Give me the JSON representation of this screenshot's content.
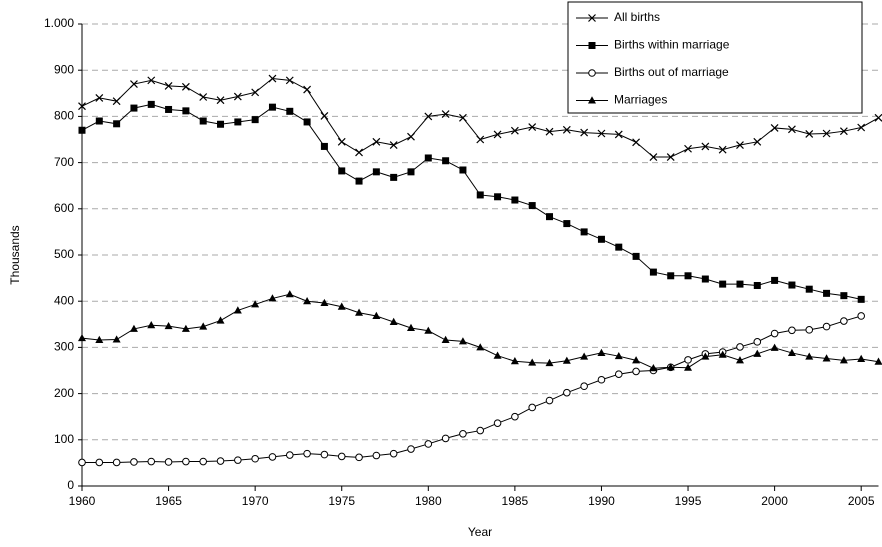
{
  "chart_data": {
    "type": "line",
    "x_label": "Year",
    "y_label": "Thousands",
    "x": [
      1960,
      1961,
      1962,
      1963,
      1964,
      1965,
      1966,
      1967,
      1968,
      1969,
      1970,
      1971,
      1972,
      1973,
      1974,
      1975,
      1976,
      1977,
      1978,
      1979,
      1980,
      1981,
      1982,
      1983,
      1984,
      1985,
      1986,
      1987,
      1988,
      1989,
      1990,
      1991,
      1992,
      1993,
      1994,
      1995,
      1996,
      1997,
      1998,
      1999,
      2000,
      2001,
      2002,
      2003,
      2004,
      2005,
      2006
    ],
    "series": [
      {
        "name": "All births",
        "color": "#000000",
        "marker": "x",
        "values": [
          822,
          840,
          833,
          870,
          878,
          866,
          864,
          842,
          835,
          843,
          852,
          882,
          878,
          858,
          801,
          745,
          722,
          745,
          738,
          756,
          800,
          805,
          797,
          750,
          761,
          769,
          777,
          767,
          771,
          765,
          763,
          761,
          744,
          712,
          712,
          730,
          735,
          728,
          738,
          745,
          775,
          772,
          762,
          763,
          768,
          776,
          797
        ]
      },
      {
        "name": "Births within marriage",
        "color": "#000000",
        "marker": "square",
        "values": [
          770,
          790,
          784,
          818,
          826,
          815,
          812,
          790,
          783,
          788,
          793,
          820,
          811,
          788,
          735,
          682,
          660,
          680,
          668,
          680,
          710,
          704,
          684,
          630,
          626,
          619,
          607,
          583,
          568,
          550,
          534,
          517,
          497,
          463,
          455,
          455,
          448,
          437,
          437,
          434,
          445,
          435,
          426,
          417,
          412,
          404,
          null
        ]
      },
      {
        "name": "Births out of marriage",
        "color": "#000000",
        "marker": "circle",
        "values": [
          51,
          51,
          51,
          52,
          53,
          52,
          53,
          53,
          54,
          56,
          59,
          63,
          67,
          70,
          68,
          64,
          62,
          66,
          70,
          80,
          91,
          103,
          113,
          120,
          136,
          150,
          170,
          185,
          202,
          216,
          230,
          242,
          248,
          250,
          257,
          273,
          286,
          290,
          301,
          312,
          330,
          337,
          338,
          345,
          357,
          368,
          null
        ]
      },
      {
        "name": "Marriages",
        "color": "#000000",
        "marker": "triangle",
        "values": [
          320,
          316,
          317,
          340,
          348,
          346,
          340,
          345,
          358,
          380,
          393,
          406,
          415,
          400,
          396,
          388,
          375,
          368,
          355,
          342,
          336,
          316,
          313,
          300,
          282,
          270,
          267,
          266,
          271,
          280,
          288,
          281,
          272,
          255,
          257,
          256,
          280,
          284,
          272,
          286,
          299,
          288,
          280,
          276,
          272,
          275,
          269
        ]
      }
    ],
    "xlim": [
      1960,
      2006
    ],
    "xticks": [
      1960,
      1965,
      1970,
      1975,
      1980,
      1985,
      1990,
      1995,
      2000,
      2005
    ],
    "ylim": [
      0,
      1000
    ],
    "yticks": [
      0,
      100,
      200,
      300,
      400,
      500,
      600,
      700,
      800,
      900,
      {
        "value": 1000,
        "label": "1.000"
      }
    ],
    "grid": true,
    "legend": "top-right"
  }
}
